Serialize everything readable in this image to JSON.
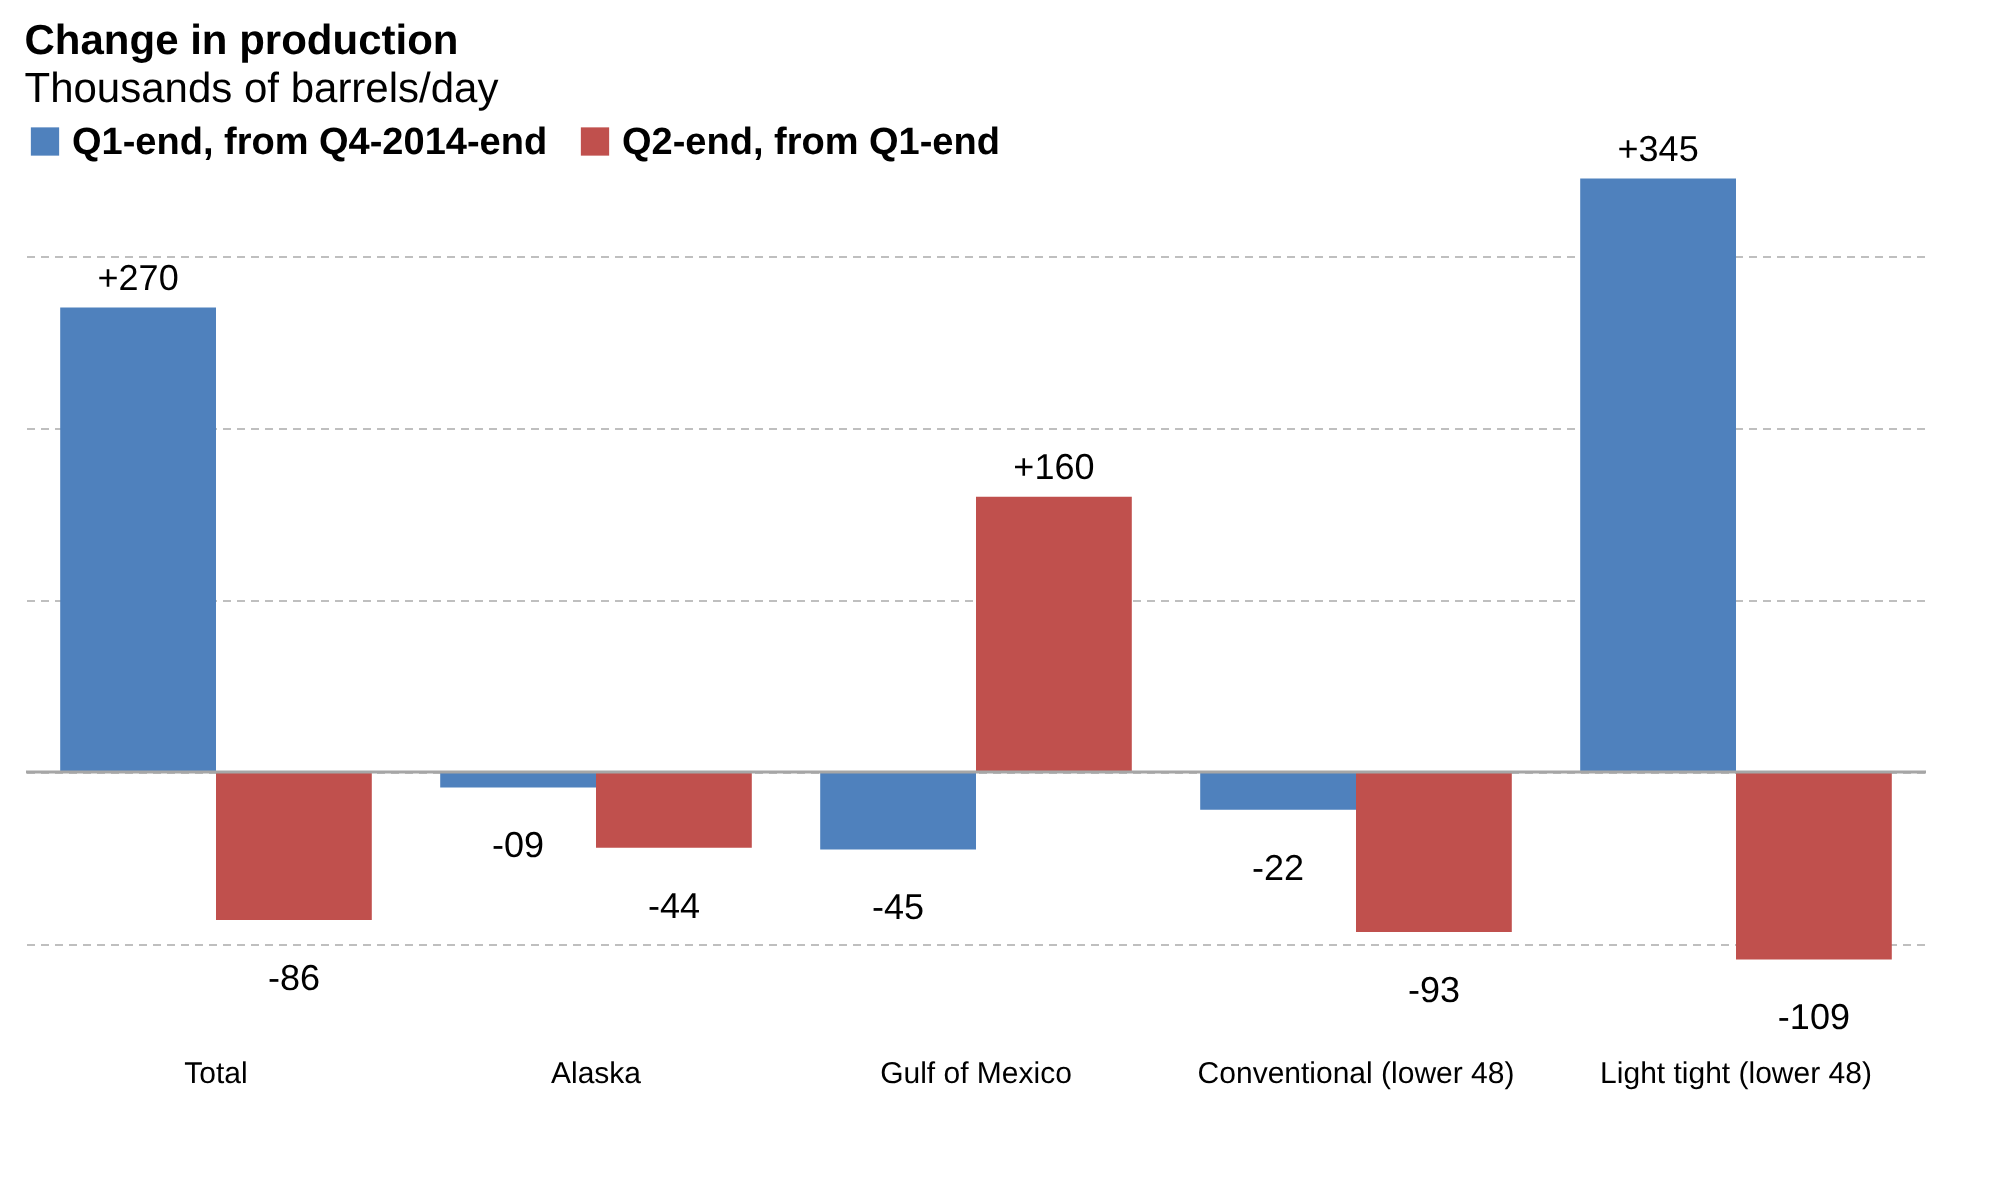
{
  "chart_data": {
    "type": "bar",
    "title": "Change in production",
    "subtitle": "Thousands of barrels/day",
    "categories": [
      "Total",
      "Alaska",
      "Gulf of Mexico",
      "Conventional (lower 48)",
      "Light tight (lower 48)"
    ],
    "series": [
      {
        "name": "Q1-end, from Q4-2014-end",
        "color": "#4f81bd",
        "values": [
          270,
          -9,
          -45,
          -22,
          345
        ],
        "value_labels": [
          "+270",
          "-09",
          "-45",
          "-22",
          "+345"
        ]
      },
      {
        "name": "Q2-end, from Q1-end",
        "color": "#c0504d",
        "values": [
          -86,
          -44,
          160,
          -93,
          -109
        ],
        "value_labels": [
          "-86",
          "-44",
          "+160",
          "-93",
          "-109"
        ]
      }
    ],
    "ref_lines": [
      {
        "axis": "y",
        "value": 0,
        "color": "#a6a6a6"
      }
    ],
    "grid": "y",
    "legend": "top left",
    "tick_labels": "x"
  }
}
